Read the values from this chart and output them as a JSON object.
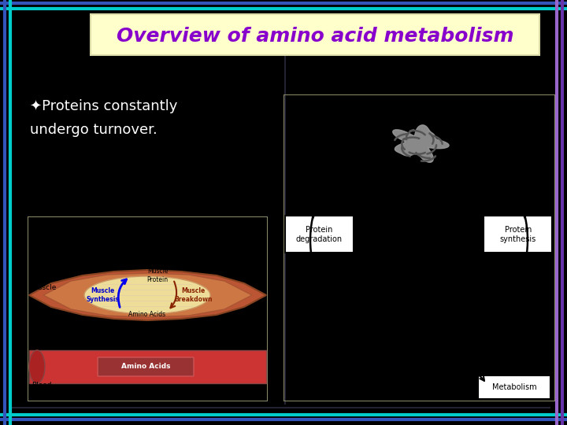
{
  "bg_color": "#000000",
  "title_text": "Overview of amino acid metabolism",
  "title_bg": "#ffffcc",
  "title_color": "#8800cc",
  "title_font_size": 18,
  "bullet_symbol": "✦",
  "bullet_text_line1": "✦Proteins constantly",
  "bullet_text_line2": "undergo turnover.",
  "bullet_color": "#ffffff",
  "bullet_font_size": 13,
  "border_outer_color": "#3355bb",
  "border_inner_color": "#00cccc",
  "right_border_color": "#9933cc"
}
